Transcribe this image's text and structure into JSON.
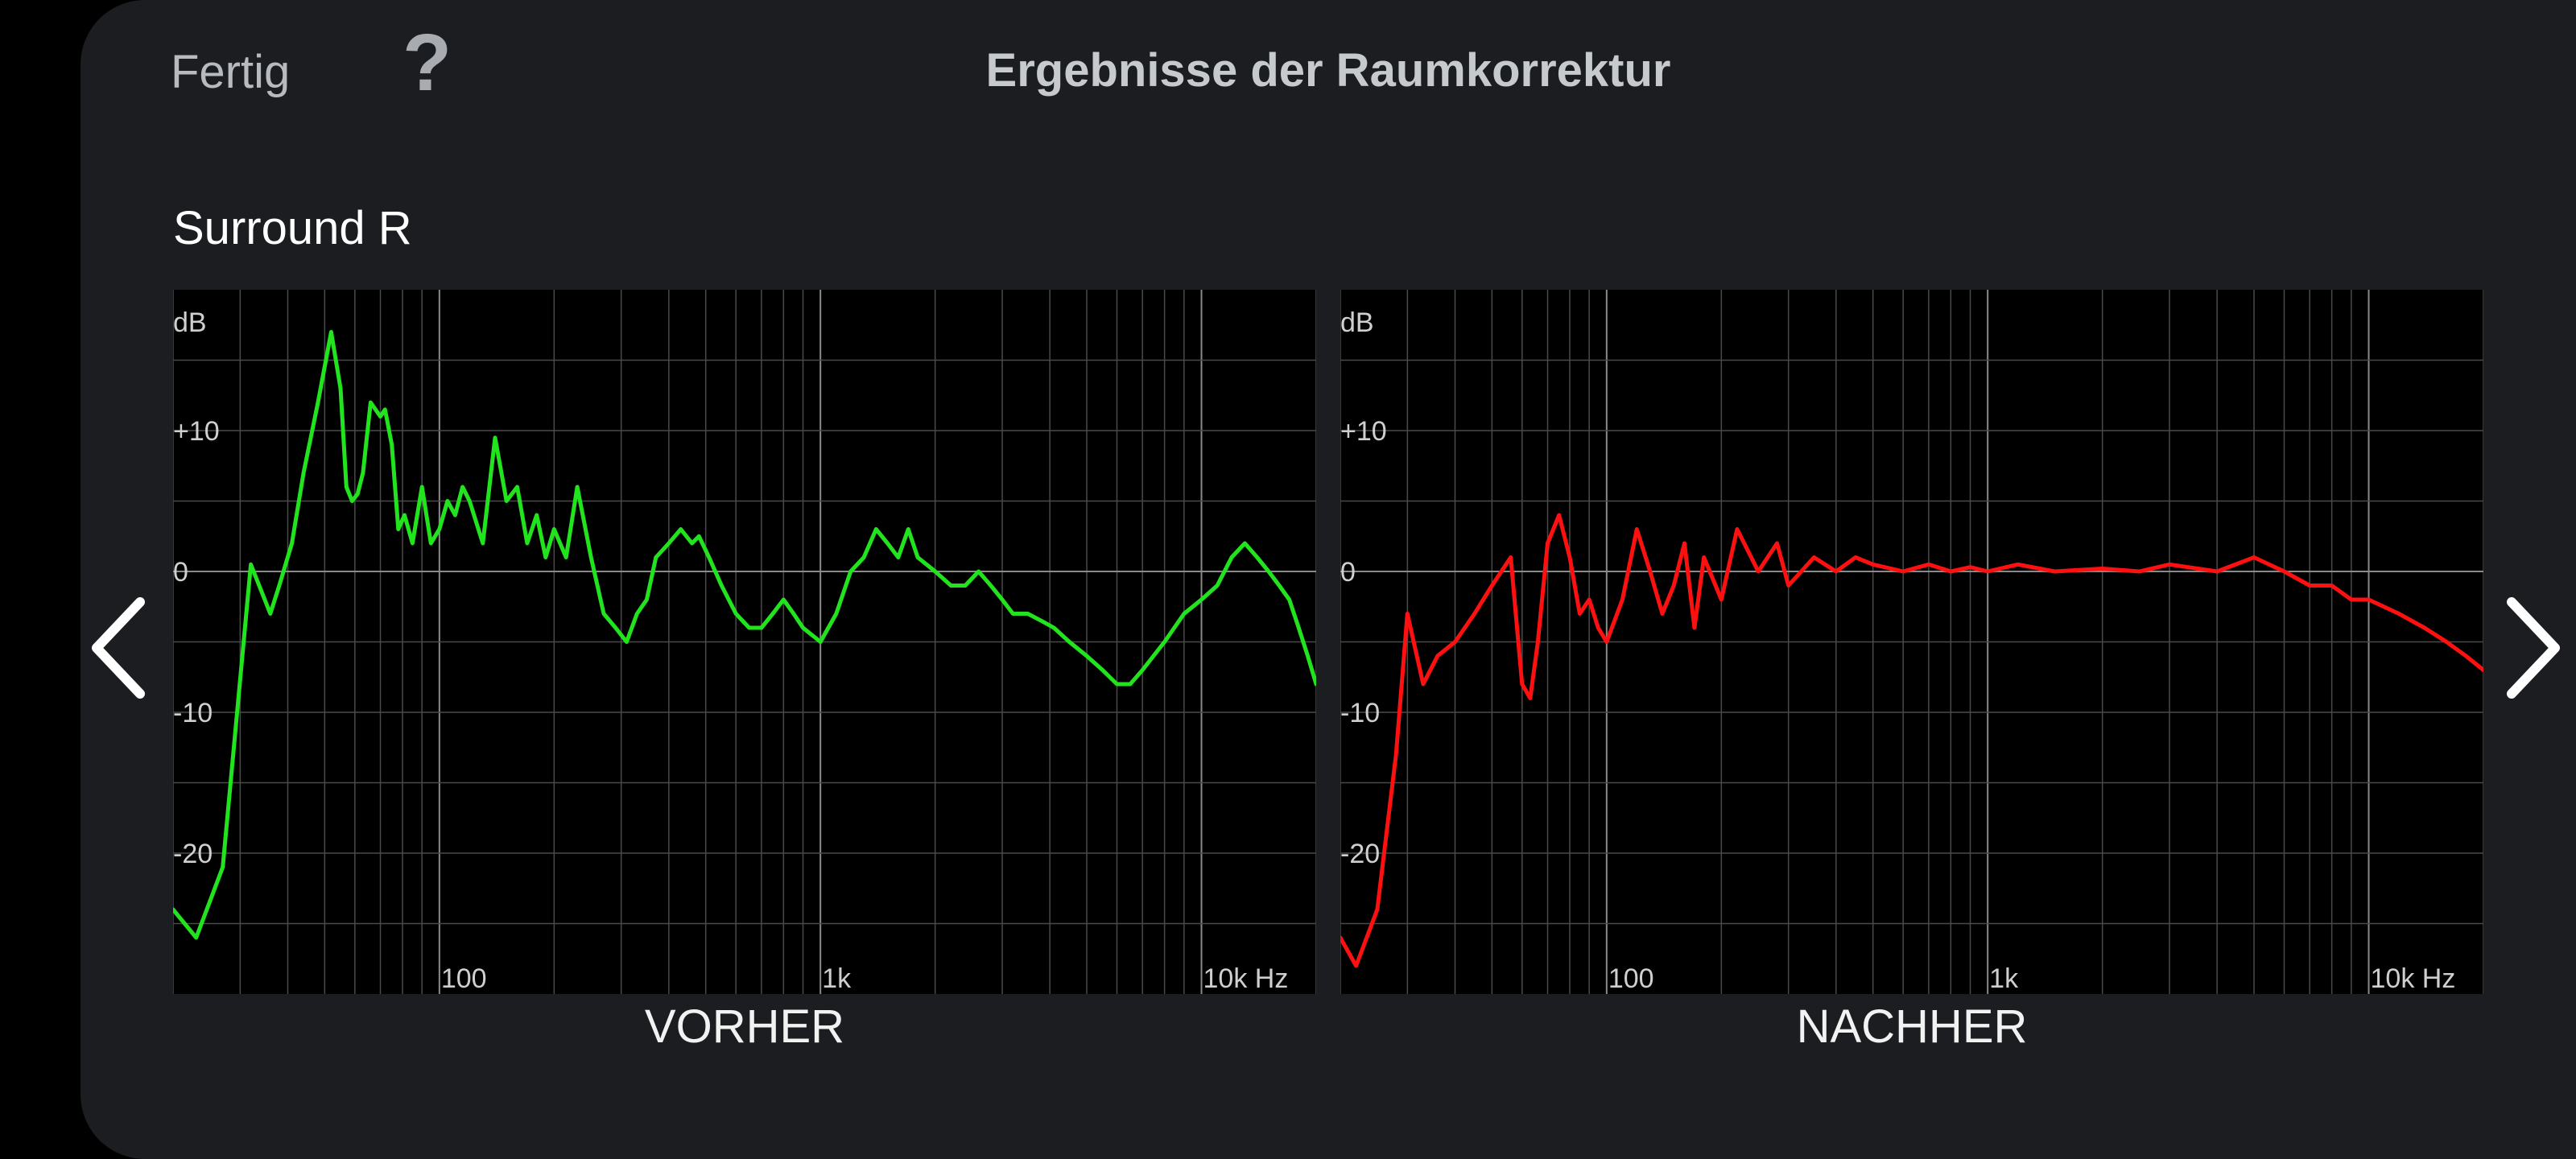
{
  "header": {
    "done_label": "Fertig",
    "help_label": "?",
    "title": "Ergebnisse der Raumkorrektur"
  },
  "channel_name": "Surround R",
  "navigation": {
    "prev_icon": "chevron-left-icon",
    "next_icon": "chevron-right-icon"
  },
  "colors": {
    "before": "#22e41e",
    "after": "#ff1010",
    "grid_major": "#8a8a8a",
    "grid_minor": "#4a4a4a",
    "panel_bg": "#1b1d21",
    "chart_bg": "#000000"
  },
  "charts": {
    "before_label": "VORHER",
    "after_label": "NACHHER",
    "y_unit": "dB",
    "y_ticks": [
      "+10",
      "0",
      "-10",
      "-20"
    ],
    "x_ticks": [
      "100",
      "1k",
      "10k Hz"
    ]
  },
  "chart_data": [
    {
      "type": "line",
      "title": "VORHER",
      "ylabel": "dB",
      "x_scale": "log",
      "xlim": [
        20,
        20000
      ],
      "ylim": [
        -30,
        20
      ],
      "x_ticks": [
        100,
        1000,
        10000
      ],
      "y_ticks": [
        10,
        0,
        -10,
        -20
      ],
      "grid": true,
      "series": [
        {
          "color": "#22e41e",
          "x": [
            20,
            23,
            27,
            32,
            36,
            38,
            41,
            44,
            48,
            52,
            55,
            57,
            59,
            61,
            63,
            66,
            70,
            72,
            75,
            78,
            81,
            85,
            90,
            95,
            100,
            105,
            110,
            115,
            120,
            130,
            140,
            150,
            160,
            170,
            180,
            190,
            200,
            215,
            230,
            250,
            270,
            290,
            310,
            330,
            350,
            370,
            400,
            430,
            460,
            480,
            510,
            550,
            600,
            650,
            700,
            750,
            800,
            850,
            900,
            1000,
            1100,
            1200,
            1300,
            1400,
            1500,
            1600,
            1700,
            1800,
            2000,
            2200,
            2400,
            2600,
            2800,
            3000,
            3200,
            3500,
            3800,
            4100,
            4500,
            5000,
            5500,
            6000,
            6500,
            7000,
            8000,
            9000,
            10000,
            11000,
            12000,
            13000,
            14000,
            15000,
            16000,
            17000,
            18000,
            19000,
            20000
          ],
          "y": [
            -24,
            -26,
            -21,
            0.5,
            -3,
            -1,
            2,
            7,
            12,
            17,
            13,
            6,
            5,
            5.5,
            7,
            12,
            11,
            11.5,
            9,
            3,
            4,
            2,
            6,
            2,
            3,
            5,
            4,
            6,
            5,
            2,
            9.5,
            5,
            6,
            2,
            4,
            1,
            3,
            1,
            6,
            1,
            -3,
            -4,
            -5,
            -3,
            -2,
            1,
            2,
            3,
            2,
            2.5,
            1,
            -1,
            -3,
            -4,
            -4,
            -3,
            -2,
            -3,
            -4,
            -5,
            -3,
            0,
            1,
            3,
            2,
            1,
            3,
            1,
            0,
            -1,
            -1,
            0,
            -1,
            -2,
            -3,
            -3,
            -3.5,
            -4,
            -5,
            -6,
            -7,
            -8,
            -8,
            -7,
            -5,
            -3,
            -2,
            -1,
            1,
            2,
            1,
            0,
            -1,
            -2,
            -4,
            -6,
            -8
          ]
        }
      ]
    },
    {
      "type": "line",
      "title": "NACHHER",
      "ylabel": "dB",
      "x_scale": "log",
      "xlim": [
        20,
        20000
      ],
      "ylim": [
        -30,
        20
      ],
      "x_ticks": [
        100,
        1000,
        10000
      ],
      "y_ticks": [
        10,
        0,
        -10,
        -20
      ],
      "grid": true,
      "series": [
        {
          "color": "#ff1010",
          "x": [
            20,
            22,
            25,
            28,
            30,
            33,
            36,
            40,
            45,
            50,
            56,
            60,
            63,
            66,
            70,
            75,
            80,
            85,
            90,
            95,
            100,
            110,
            120,
            130,
            140,
            150,
            160,
            170,
            180,
            200,
            220,
            250,
            280,
            300,
            350,
            400,
            450,
            500,
            600,
            700,
            800,
            900,
            1000,
            1200,
            1500,
            2000,
            2500,
            3000,
            4000,
            5000,
            6000,
            7000,
            8000,
            9000,
            10000,
            12000,
            14000,
            16000,
            18000,
            20000
          ],
          "y": [
            -26,
            -28,
            -24,
            -13,
            -3,
            -8,
            -6,
            -5,
            -3,
            -1,
            1,
            -8,
            -9,
            -5,
            2,
            4,
            1,
            -3,
            -2,
            -4,
            -5,
            -2,
            3,
            0,
            -3,
            -1,
            2,
            -4,
            1,
            -2,
            3,
            0,
            2,
            -1,
            1,
            0,
            1,
            0.5,
            0,
            0.5,
            0,
            0.3,
            0,
            0.5,
            0,
            0.2,
            0,
            0.5,
            0,
            1,
            0,
            -1,
            -1,
            -2,
            -2,
            -3,
            -4,
            -5,
            -6,
            -7
          ]
        }
      ]
    }
  ]
}
